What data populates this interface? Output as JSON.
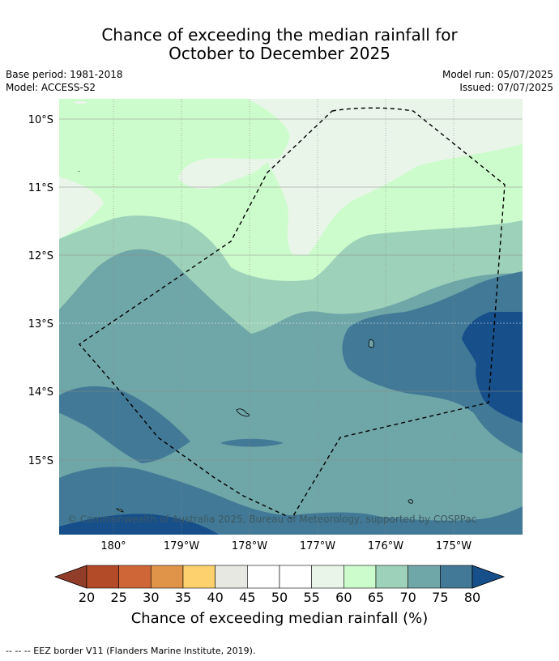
{
  "title": {
    "line1": "Chance of exceeding the median rainfall for",
    "line2": "October to December 2025"
  },
  "meta": {
    "base_period": "Base period: 1981-2018",
    "model": "Model: ACCESS-S2",
    "model_run": "Model run: 05/07/2025",
    "issued": "Issued: 07/07/2025"
  },
  "map": {
    "lat_labels": [
      "10°S",
      "11°S",
      "12°S",
      "13°S",
      "14°S",
      "15°S"
    ],
    "lon_labels": [
      "180°",
      "179°W",
      "178°W",
      "177°W",
      "176°W",
      "175°W"
    ],
    "copyright": "© Commonwealth of Australia 2025, Bureau of Meteorology, supported by COSPPac",
    "region_colors": {
      "p55_60": "#e9f5e9",
      "p60_65": "#ccfccc",
      "p65_70": "#9dd1b9",
      "p70_75": "#6fa6a8",
      "p75_80": "#417996",
      "p80_plus": "#164f8a"
    }
  },
  "colorbar": {
    "ticks": [
      "20",
      "25",
      "30",
      "35",
      "40",
      "45",
      "50",
      "55",
      "60",
      "65",
      "70",
      "75",
      "80"
    ],
    "colors": [
      "#b34b28",
      "#cf6637",
      "#e0944a",
      "#fdd26e",
      "#e8e8e3",
      "#ffffff",
      "#ffffff",
      "#e9f5e9",
      "#ccfccc",
      "#9dd1b9",
      "#6fa6a8",
      "#417996"
    ],
    "under_color": "#923d2a",
    "over_color": "#164f8a",
    "label": "Chance of exceeding median rainfall (%)"
  },
  "footer": "--  --  -- EEZ border V11 (Flanders Marine Institute, 2019)."
}
